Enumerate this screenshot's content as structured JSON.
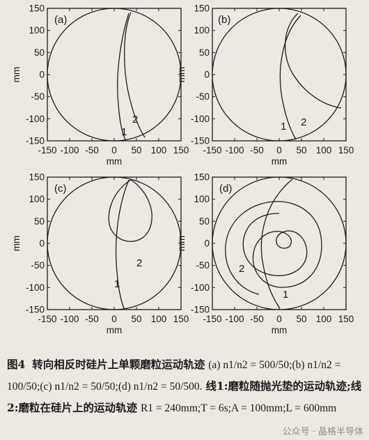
{
  "figure": {
    "panels": [
      {
        "label": "(a)",
        "series": [
          {
            "name": "1"
          },
          {
            "name": "2"
          }
        ]
      },
      {
        "label": "(b)",
        "series": [
          {
            "name": "1"
          },
          {
            "name": "2"
          }
        ]
      },
      {
        "label": "(c)",
        "series": [
          {
            "name": "1"
          },
          {
            "name": "2"
          }
        ]
      },
      {
        "label": "(d)",
        "series": [
          {
            "name": "1"
          },
          {
            "name": "2"
          }
        ]
      }
    ],
    "x_ticks": [
      "-150",
      "-100",
      "-50",
      "0",
      "50",
      "100",
      "150"
    ],
    "y_ticks": [
      "150",
      "100",
      "50",
      "0",
      "-50",
      "-100",
      "-150"
    ],
    "axis_unit": "mm",
    "xlim": [
      -150,
      150
    ],
    "ylim": [
      -150,
      150
    ]
  },
  "caption": {
    "fig_no": "图4",
    "title": "转向相反时硅片上单颗磨粒运动轨迹",
    "parts": "(a) n1/n2 = 500/50;(b) n1/n2 = 100/50;(c) n1/n2 = 50/50;(d) n1/n2 = 50/500.",
    "legend": "线1:磨粒随抛光垫的运动轨迹;线2:磨粒在硅片上的运动轨迹",
    "params": "R1 = 240mm;T = 6s;A = 100mm;L = 600mm"
  },
  "watermark": "公众号 · 晶格半导体"
}
